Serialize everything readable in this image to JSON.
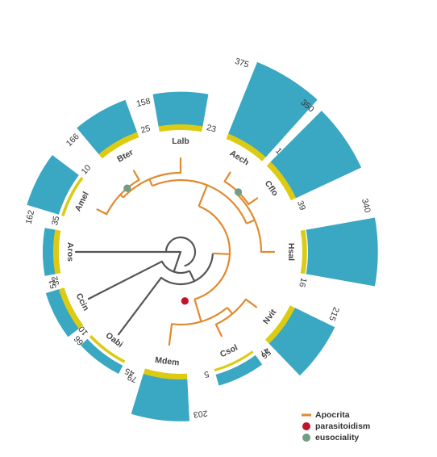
{
  "colors": {
    "apocrita": "#e08a2e",
    "outgroup": "#555555",
    "parasitoidism": "#c0142a",
    "eusociality": "#6f9e84",
    "outer_bar": "#3aa7c3",
    "inner_bar": "#dccb12"
  },
  "chart_data": {
    "type": "radial-tree",
    "taxa": [
      {
        "name": "Aros",
        "outer": 51,
        "inner": 35,
        "angle": 180.0
      },
      {
        "name": "Amel",
        "outer": 162,
        "inner": 10,
        "angle": 153.0
      },
      {
        "name": "Bter",
        "outer": 166,
        "inner": 25,
        "angle": 120.0
      },
      {
        "name": "Lalb",
        "outer": 158,
        "inner": 23,
        "angle": 90.0
      },
      {
        "name": "Aech",
        "outer": 375,
        "inner": 116,
        "angle": 58.0
      },
      {
        "name": "Cflo",
        "outer": 350,
        "inner": 39,
        "angle": 35.0
      },
      {
        "name": "Hsal",
        "outer": 340,
        "inner": 16,
        "angle": 0.0
      },
      {
        "name": "Nvit",
        "outer": 215,
        "inner": 47,
        "angle": -36.0
      },
      {
        "name": "Csol",
        "outer": 56,
        "inner": 5,
        "angle": -64.0
      },
      {
        "name": "Mdem",
        "outer": 203,
        "inner": 79,
        "angle": -97.0
      },
      {
        "name": "Oabi",
        "outer": 45,
        "inner": 10,
        "angle": -127.0
      },
      {
        "name": "Ccin",
        "outer": 66,
        "inner": 32,
        "angle": -153.0
      }
    ],
    "legend": [
      {
        "key": "apocrita",
        "label": "Apocrita",
        "shape": "line"
      },
      {
        "key": "parasitoidism",
        "label": "parasitoidism",
        "shape": "dot"
      },
      {
        "key": "eusociality",
        "label": "eusociality",
        "shape": "dot"
      }
    ],
    "legend_position": "bottom-right"
  }
}
